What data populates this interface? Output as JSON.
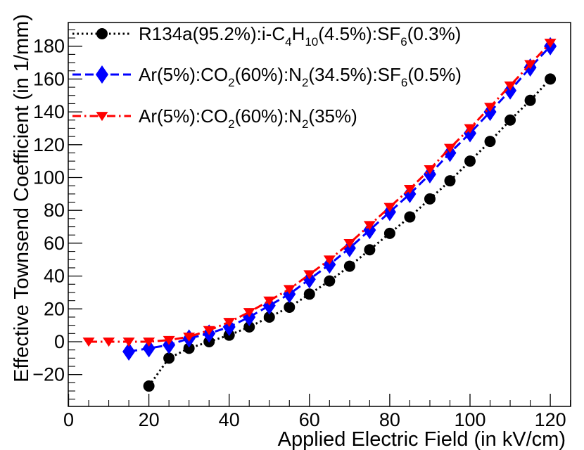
{
  "chart_data": {
    "type": "line",
    "title": "",
    "xlabel": "Applied Electric Field (in kV/cm)",
    "ylabel": "Effective Townsend Coefficient (in 1/mm)",
    "xlim": [
      0,
      125
    ],
    "ylim": [
      -35,
      192
    ],
    "x_ticks": [
      0,
      20,
      40,
      60,
      80,
      100,
      120
    ],
    "x_tick_labels": [
      "0",
      "20",
      "40",
      "60",
      "80",
      "100",
      "120"
    ],
    "y_ticks": [
      -20,
      0,
      20,
      40,
      60,
      80,
      100,
      120,
      140,
      160,
      180
    ],
    "y_tick_labels": [
      "−20",
      "0",
      "20",
      "40",
      "60",
      "80",
      "100",
      "120",
      "140",
      "160",
      "180"
    ],
    "legend_position": "top-left",
    "series": [
      {
        "name": "R134a(95.2%):i-C4H10(4.5%):SF6(0.3%)",
        "legend_parts": [
          [
            "R134a(95.2%):i-C",
            ""
          ],
          [
            "4",
            "sub"
          ],
          [
            "H",
            ""
          ],
          [
            "10",
            "sub"
          ],
          [
            "(4.5%):SF",
            ""
          ],
          [
            "6",
            "sub"
          ],
          [
            "(0.3%)",
            ""
          ]
        ],
        "color": "#000000",
        "marker": "circle",
        "linestyle": "dotted",
        "x": [
          20,
          25,
          30,
          35,
          40,
          45,
          50,
          55,
          60,
          65,
          70,
          75,
          80,
          85,
          90,
          95,
          100,
          105,
          110,
          115,
          120
        ],
        "values": [
          -27,
          -10,
          -4,
          0,
          4,
          9,
          15,
          21,
          29,
          37,
          46,
          56,
          66,
          76,
          87,
          98,
          110,
          122,
          135,
          147,
          160
        ]
      },
      {
        "name": "Ar(5%):CO2(60%):N2(34.5%):SF6(0.5%)",
        "legend_parts": [
          [
            "Ar(5%):CO",
            ""
          ],
          [
            "2",
            "sub"
          ],
          [
            "(60%):N",
            ""
          ],
          [
            "2",
            "sub"
          ],
          [
            "(34.5%):SF",
            ""
          ],
          [
            "6",
            "sub"
          ],
          [
            "(0.5%)",
            ""
          ]
        ],
        "color": "#0000ff",
        "marker": "diamond",
        "linestyle": "dashed",
        "x": [
          15,
          20,
          25,
          30,
          35,
          40,
          45,
          50,
          55,
          60,
          65,
          70,
          75,
          80,
          85,
          90,
          95,
          100,
          105,
          110,
          115,
          120
        ],
        "values": [
          -6,
          -4,
          -2,
          2,
          5,
          9,
          15,
          22,
          29,
          38,
          47,
          57,
          68,
          79,
          90,
          102,
          115,
          127,
          140,
          153,
          167,
          180
        ]
      },
      {
        "name": "Ar(5%):CO2(60%):N2(35%)",
        "legend_parts": [
          [
            "Ar(5%):CO",
            ""
          ],
          [
            "2",
            "sub"
          ],
          [
            "(60%):N",
            ""
          ],
          [
            "2",
            "sub"
          ],
          [
            "(35%)",
            ""
          ]
        ],
        "color": "#ff0000",
        "marker": "triangle-down",
        "linestyle": "dashdot",
        "x": [
          5,
          10,
          15,
          20,
          25,
          30,
          35,
          40,
          45,
          50,
          55,
          60,
          65,
          70,
          75,
          80,
          85,
          90,
          95,
          100,
          105,
          110,
          115,
          120
        ],
        "values": [
          0,
          0,
          0,
          0,
          1,
          3,
          7,
          12,
          18,
          25,
          32,
          41,
          50,
          60,
          71,
          82,
          93,
          105,
          118,
          130,
          143,
          156,
          169,
          182
        ]
      }
    ]
  }
}
